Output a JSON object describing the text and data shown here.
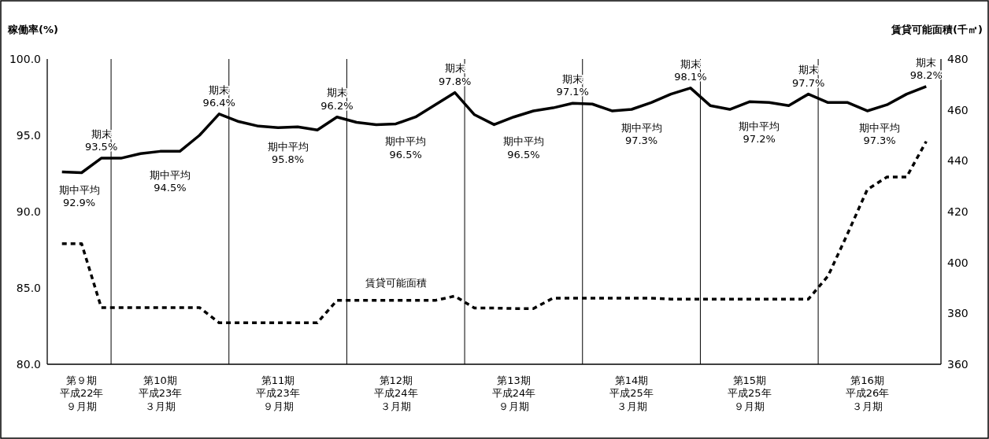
{
  "chart_data": {
    "type": "line",
    "ylabel": "稼働率(%)",
    "y2label": "賃貸可能面積(千㎡)",
    "categories": [
      null,
      "第９期平成22年９月期",
      null,
      null,
      null,
      "第10期平成23年３月期",
      null,
      null,
      null,
      null,
      null,
      "第11期平成23年９月期",
      null,
      null,
      null,
      null,
      null,
      "第12期平成24年３月期",
      null,
      null,
      null,
      null,
      null,
      "第13期平成24年９月期",
      null,
      null,
      null,
      null,
      null,
      "第14期平成25年３月期",
      null,
      null,
      null,
      null,
      null,
      "第15期平成25年９月期",
      null,
      null,
      null,
      null,
      null,
      "第16期平成26年３月期",
      null,
      null,
      null
    ],
    "ylim": [
      80,
      100
    ],
    "yticks": [
      {
        "value": 80,
        "label": "80.0"
      },
      {
        "value": 85,
        "label": "85.0"
      },
      {
        "value": 90,
        "label": "90.0"
      },
      {
        "value": 95,
        "label": "95.0"
      },
      {
        "value": 100,
        "label": "100.0"
      }
    ],
    "y2lim": [
      360,
      480
    ],
    "y2ticks": [
      360,
      380,
      400,
      420,
      440,
      460,
      480
    ],
    "series": [
      {
        "color": "#000000",
        "line_style": "solid",
        "values": [
          92.6,
          92.55,
          93.5,
          93.5,
          93.8,
          93.95,
          93.95,
          95.0,
          96.4,
          95.9,
          95.6,
          95.5,
          95.55,
          95.35,
          96.2,
          95.85,
          95.7,
          95.75,
          96.2,
          97.0,
          97.8,
          96.35,
          95.7,
          96.2,
          96.6,
          96.8,
          97.1,
          97.05,
          96.6,
          96.7,
          97.15,
          97.7,
          98.1,
          96.95,
          96.7,
          97.2,
          97.15,
          96.95,
          97.7,
          97.15,
          97.15,
          96.6,
          97.0,
          97.7,
          98.2
        ],
        "value_labels": [
          null,
          null,
          "期末\n93.5%",
          null,
          null,
          null,
          null,
          null,
          "期末\n96.4%",
          null,
          null,
          null,
          null,
          null,
          "期末\n96.2%",
          null,
          null,
          null,
          null,
          null,
          "期末\n97.8%",
          null,
          null,
          null,
          null,
          null,
          "期末\n97.1%",
          null,
          null,
          null,
          null,
          null,
          "期末\n98.1%",
          null,
          null,
          null,
          null,
          null,
          "期末\n97.7%",
          null,
          null,
          null,
          null,
          null,
          "期末\n98.2%"
        ]
      },
      {
        "name": "賃貸可能面積",
        "color": "#000000",
        "line_style": "dotted",
        "axis": "y2",
        "values": [
          407.4,
          407.4,
          382.3,
          382.3,
          382.3,
          382.3,
          382.3,
          382.3,
          376.3,
          376.3,
          376.3,
          376.3,
          376.3,
          376.3,
          385.1,
          385.1,
          385.1,
          385.1,
          385.1,
          385.1,
          386.8,
          382.1,
          382.1,
          381.9,
          381.9,
          386.0,
          386.0,
          386.0,
          386.0,
          386.0,
          386.0,
          385.6,
          385.6,
          385.6,
          385.6,
          385.6,
          385.6,
          385.6,
          385.6,
          394.7,
          411.4,
          428.7,
          433.6,
          433.6,
          447.6
        ]
      }
    ],
    "annotations": [
      "期中平均\n92.9%",
      "期中平均\n94.5%",
      "期中平均\n95.8%",
      "期中平均\n96.5%",
      "期中平均\n96.5%",
      "期中平均\n97.3%",
      "期中平均\n97.2%",
      "期中平均\n97.3%"
    ],
    "legend": false,
    "grid": false
  }
}
